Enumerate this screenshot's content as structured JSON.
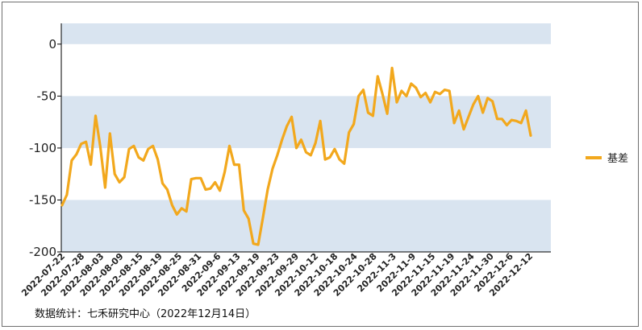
{
  "chart_data": {
    "type": "line",
    "title": "",
    "xlabel": "",
    "ylabel": "",
    "ylim": [
      -200,
      20
    ],
    "yticks": [
      0,
      -50,
      -100,
      -150,
      -200
    ],
    "grid": "horizontal bands",
    "legend_position": "right",
    "colors": {
      "line": "#f2a81d",
      "band": "#d9e4f0",
      "axis": "#000000"
    },
    "x_tick_labels": [
      "2022-07-22",
      "2022-07-28",
      "2022-08-03",
      "2022-08-09",
      "2022-08-15",
      "2022-08-19",
      "2022-08-25",
      "2022-08-31",
      "2022-09-6",
      "2022-09-13",
      "2022-09-19",
      "2022-09-23",
      "2022-09-29",
      "2022-10-12",
      "2022-10-18",
      "2022-10-24",
      "2022-10-28",
      "2022-11-3",
      "2022-11-9",
      "2022-11-15",
      "2022-11-19",
      "2022-11-24",
      "2022-11-30",
      "2022-12-6",
      "2022-12-12"
    ],
    "series": [
      {
        "name": "基差",
        "values": [
          -155,
          -145,
          -112,
          -106,
          -96,
          -94,
          -116,
          -69,
          -99,
          -138,
          -86,
          -125,
          -133,
          -128,
          -101,
          -98,
          -109,
          -112,
          -101,
          -98,
          -111,
          -134,
          -140,
          -155,
          -164,
          -158,
          -161,
          -130,
          -129,
          -129,
          -140,
          -139,
          -133,
          -141,
          -123,
          -98,
          -116,
          -116,
          -160,
          -168,
          -192,
          -193,
          -167,
          -140,
          -120,
          -107,
          -92,
          -79,
          -70,
          -100,
          -92,
          -104,
          -107,
          -95,
          -74,
          -111,
          -109,
          -101,
          -111,
          -115,
          -85,
          -77,
          -50,
          -44,
          -66,
          -69,
          -31,
          -48,
          -67,
          -23,
          -56,
          -45,
          -50,
          -38,
          -42,
          -51,
          -47,
          -56,
          -46,
          -48,
          -44,
          -45,
          -76,
          -64,
          -82,
          -70,
          -58,
          -50,
          -66,
          -52,
          -55,
          -72,
          -72,
          -78,
          -73,
          -74,
          -76,
          -64,
          -88
        ]
      }
    ]
  },
  "legend": {
    "label": "基差"
  },
  "source_note": "数据统计：七禾研究中心（2022年12月14日）"
}
